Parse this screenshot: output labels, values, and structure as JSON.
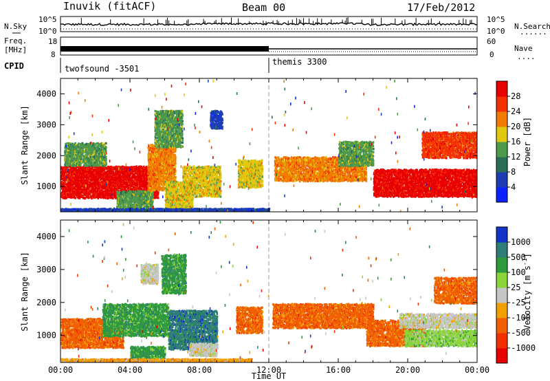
{
  "header": {
    "station": "Inuvik (fitACF)",
    "beam": "Beam 00",
    "date": "17/Feb/2012"
  },
  "side_labels": {
    "nsky": "N.Sky",
    "nsearch": "N.Search",
    "freq_top": "Freq.",
    "freq_unit": "[MHz]",
    "nave": "Nave",
    "cpid": "CPID",
    "dots": "......",
    "dots_short": "...."
  },
  "noise_panel": {
    "left_ticks": [
      "10^5",
      "10^0"
    ],
    "right_ticks": [
      "10^5",
      "10^0"
    ]
  },
  "freq_panel": {
    "left_ticks": [
      "18",
      "8"
    ],
    "right_ticks": [
      "60",
      "0"
    ]
  },
  "cpid_panel": {
    "segments": [
      {
        "label": "twofsound -3501",
        "start_hour": 0
      },
      {
        "label": "themis 3300",
        "start_hour": 12
      }
    ]
  },
  "chart_data": [
    {
      "type": "heatmap",
      "name": "power",
      "ylabel": "Slant Range [km]",
      "yticks": [
        1000,
        2000,
        3000,
        4000
      ],
      "ylim": [
        180,
        4500
      ],
      "xlim": [
        0,
        24
      ],
      "colorbar": {
        "label": "Power [dB]",
        "levels": [
          "4",
          "8",
          "12",
          "16",
          "20",
          "24",
          "28"
        ],
        "colors": [
          "#0a22ff",
          "#1f3cb4",
          "#2a6e59",
          "#4e9a4c",
          "#e1c70e",
          "#f07d00",
          "#f53000",
          "#e80000"
        ]
      },
      "regions": [
        {
          "x0": 0.0,
          "x1": 5.6,
          "y0": 650,
          "y1": 1700,
          "c": 7
        },
        {
          "x0": 0.2,
          "x1": 2.6,
          "y0": 1700,
          "y1": 2450,
          "c": 3
        },
        {
          "x0": 3.2,
          "x1": 5.3,
          "y0": 300,
          "y1": 900,
          "c": 3
        },
        {
          "x0": 5.0,
          "x1": 6.6,
          "y0": 900,
          "y1": 2400,
          "c": 5
        },
        {
          "x0": 5.4,
          "x1": 7.0,
          "y0": 2300,
          "y1": 3500,
          "c": 3
        },
        {
          "x0": 6.0,
          "x1": 7.6,
          "y0": 300,
          "y1": 1200,
          "c": 4
        },
        {
          "x0": 7.0,
          "x1": 9.2,
          "y0": 700,
          "y1": 1700,
          "c": 4
        },
        {
          "x0": 8.6,
          "x1": 9.3,
          "y0": 2900,
          "y1": 3500,
          "c": 1
        },
        {
          "x0": 10.2,
          "x1": 11.6,
          "y0": 1000,
          "y1": 1900,
          "c": 4
        },
        {
          "x0": 12.3,
          "x1": 17.6,
          "y0": 1200,
          "y1": 2000,
          "c": 5
        },
        {
          "x0": 16.0,
          "x1": 18.0,
          "y0": 1700,
          "y1": 2500,
          "c": 3
        },
        {
          "x0": 18.0,
          "x1": 24.0,
          "y0": 700,
          "y1": 1600,
          "c": 7
        },
        {
          "x0": 20.8,
          "x1": 24.0,
          "y0": 1950,
          "y1": 2800,
          "c": 6
        },
        {
          "x0": 0.0,
          "x1": 12.0,
          "y0": 190,
          "y1": 320,
          "c": 1
        }
      ]
    },
    {
      "type": "heatmap",
      "name": "velocity",
      "ylabel": "Slant Range [km]",
      "xlabel": "Time UT",
      "xticks": [
        "00:00",
        "04:00",
        "08:00",
        "12:00",
        "16:00",
        "20:00",
        "00:00"
      ],
      "yticks": [
        1000,
        2000,
        3000,
        4000
      ],
      "ylim": [
        180,
        4500
      ],
      "xlim": [
        0,
        24
      ],
      "colorbar": {
        "label": "Velocity [m s",
        "label_sup": "-1",
        "label_end": "]",
        "levels": [
          "1000",
          "500",
          "100",
          "25",
          "-25",
          "-100",
          "-500",
          "-1000"
        ],
        "colors": [
          "#1234c4",
          "#2f7d78",
          "#2f9a3c",
          "#8bd43a",
          "#c6c6c6",
          "#f0a000",
          "#f06000",
          "#f03000",
          "#e80000"
        ]
      },
      "regions": [
        {
          "x0": 0.0,
          "x1": 3.6,
          "y0": 650,
          "y1": 1550,
          "c": 6
        },
        {
          "x0": 2.4,
          "x1": 6.2,
          "y0": 1000,
          "y1": 2000,
          "c": 2
        },
        {
          "x0": 4.0,
          "x1": 6.0,
          "y0": 300,
          "y1": 700,
          "c": 2
        },
        {
          "x0": 5.8,
          "x1": 7.2,
          "y0": 2300,
          "y1": 3500,
          "c": 2
        },
        {
          "x0": 6.2,
          "x1": 9.0,
          "y0": 600,
          "y1": 1800,
          "c": 1
        },
        {
          "x0": 7.4,
          "x1": 9.0,
          "y0": 400,
          "y1": 800,
          "c": 4
        },
        {
          "x0": 10.1,
          "x1": 11.6,
          "y0": 1100,
          "y1": 1900,
          "c": 6
        },
        {
          "x0": 12.2,
          "x1": 18.0,
          "y0": 1250,
          "y1": 2000,
          "c": 6
        },
        {
          "x0": 17.6,
          "x1": 21.0,
          "y0": 700,
          "y1": 1500,
          "c": 6
        },
        {
          "x0": 19.8,
          "x1": 24.0,
          "y0": 700,
          "y1": 1200,
          "c": 3
        },
        {
          "x0": 19.5,
          "x1": 24.0,
          "y0": 1250,
          "y1": 1700,
          "c": 4
        },
        {
          "x0": 21.5,
          "x1": 24.0,
          "y0": 2000,
          "y1": 2800,
          "c": 6
        },
        {
          "x0": 0.0,
          "x1": 11.0,
          "y0": 190,
          "y1": 320,
          "c": 5
        },
        {
          "x0": 4.6,
          "x1": 5.6,
          "y0": 2600,
          "y1": 3200,
          "c": 4
        }
      ]
    }
  ]
}
